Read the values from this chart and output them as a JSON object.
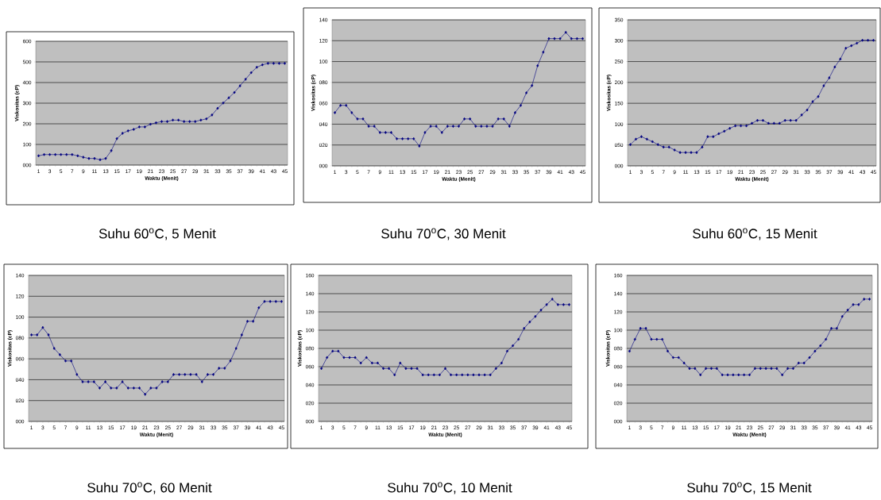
{
  "chart_data": [
    {
      "type": "line",
      "title": "Suhu 60$^{o}$C, 5 Menit",
      "xlabel": "Waktu (Menit)",
      "ylabel": "Viskositas (cP)",
      "marker": "diamond",
      "grid": "y",
      "categories": [
        "1",
        null,
        "3",
        null,
        "5",
        null,
        "7",
        null,
        "9",
        null,
        "11",
        null,
        "13",
        null,
        "15",
        null,
        "17",
        null,
        "19",
        null,
        "21",
        null,
        "23",
        null,
        "25",
        null,
        "27",
        null,
        "29",
        null,
        "31",
        null,
        "33",
        null,
        "35",
        null,
        "37",
        null,
        "39",
        null,
        "41",
        null,
        "43",
        null,
        "45"
      ],
      "ylim": [
        0,
        600
      ],
      "yticks": [
        {
          "value": 0,
          "label": "000"
        },
        100,
        200,
        300,
        400,
        500,
        600
      ],
      "series": [
        {
          "color": "#000080",
          "values": [
            45,
            51,
            51,
            51,
            51,
            51,
            51,
            45,
            38,
            32,
            32,
            26,
            32,
            70,
            128,
            154,
            166,
            173,
            185,
            185,
            198,
            205,
            211,
            211,
            218,
            218,
            211,
            211,
            211,
            218,
            224,
            243,
            275,
            301,
            326,
            352,
            384,
            416,
            448,
            474,
            486,
            493,
            493,
            493,
            493
          ]
        }
      ]
    },
    {
      "type": "line",
      "title": "Suhu 70$^{o}$C, 30 Menit",
      "xlabel": "Waktu (Menit)",
      "ylabel": "Viskositas (cP)",
      "marker": "diamond",
      "grid": "y",
      "categories": [
        "1",
        null,
        "3",
        null,
        "5",
        null,
        "7",
        null,
        "9",
        null,
        "11",
        null,
        "13",
        null,
        "15",
        null,
        "17",
        null,
        "19",
        null,
        "21",
        null,
        "23",
        null,
        "25",
        null,
        "27",
        null,
        "29",
        null,
        "31",
        null,
        "33",
        null,
        "35",
        null,
        "37",
        null,
        "39",
        null,
        "41",
        null,
        "43",
        null,
        "45"
      ],
      "ylim": [
        0,
        140
      ],
      "yticks": [
        {
          "value": 0,
          "label": "000"
        },
        {
          "value": 20,
          "label": "020"
        },
        {
          "value": 40,
          "label": "040"
        },
        {
          "value": 60,
          "label": "060"
        },
        {
          "value": 80,
          "label": "080"
        },
        100,
        120,
        140
      ],
      "series": [
        {
          "color": "#000080",
          "values": [
            51,
            58,
            58,
            51,
            45,
            45,
            38,
            38,
            32,
            32,
            32,
            26,
            26,
            26,
            26,
            19,
            32,
            38,
            38,
            32,
            38,
            38,
            38,
            45,
            45,
            38,
            38,
            38,
            38,
            45,
            45,
            38,
            51,
            58,
            70,
            77,
            96,
            109,
            122,
            122,
            122,
            128,
            122,
            122,
            122
          ]
        }
      ]
    },
    {
      "type": "line",
      "title": "Suhu 60$^{o}$C, 15 Menit",
      "xlabel": "Waktu (Menit)",
      "ylabel": "Viskositas (cP)",
      "marker": "diamond",
      "grid": "y",
      "categories": [
        "1",
        null,
        "3",
        null,
        "5",
        null,
        "7",
        null,
        "9",
        null,
        "11",
        null,
        "13",
        null,
        "15",
        null,
        "17",
        null,
        "19",
        null,
        "21",
        null,
        "23",
        null,
        "25",
        null,
        "27",
        null,
        "29",
        null,
        "31",
        null,
        "33",
        null,
        "35",
        null,
        "37",
        null,
        "39",
        null,
        "41",
        null,
        "43",
        null,
        "45"
      ],
      "ylim": [
        0,
        350
      ],
      "yticks": [
        {
          "value": 0,
          "label": "000"
        },
        {
          "value": 50,
          "label": "050"
        },
        100,
        150,
        200,
        250,
        300,
        350
      ],
      "series": [
        {
          "color": "#000080",
          "values": [
            51,
            64,
            70,
            64,
            58,
            51,
            45,
            45,
            38,
            32,
            32,
            32,
            32,
            45,
            70,
            70,
            77,
            83,
            90,
            96,
            96,
            96,
            102,
            109,
            109,
            102,
            102,
            102,
            109,
            109,
            109,
            122,
            134,
            154,
            166,
            192,
            211,
            237,
            256,
            282,
            288,
            294,
            301,
            301,
            301
          ]
        }
      ]
    },
    {
      "type": "line",
      "title": "Suhu 70$^{o}$C, 60 Menit",
      "xlabel": "Waktu (Menit)",
      "ylabel": "Viskositas (cP)",
      "marker": "diamond",
      "grid": "y",
      "categories": [
        "1",
        null,
        "3",
        null,
        "5",
        null,
        "7",
        null,
        "9",
        null,
        "11",
        null,
        "13",
        null,
        "15",
        null,
        "17",
        null,
        "19",
        null,
        "21",
        null,
        "23",
        null,
        "25",
        null,
        "27",
        null,
        "29",
        null,
        "31",
        null,
        "33",
        null,
        "35",
        null,
        "37",
        null,
        "39",
        null,
        "41",
        null,
        "43",
        null,
        "45"
      ],
      "ylim": [
        0,
        140
      ],
      "yticks": [
        {
          "value": 0,
          "label": "000"
        },
        {
          "value": 20,
          "label": "020"
        },
        {
          "value": 40,
          "label": "040"
        },
        {
          "value": 60,
          "label": "060"
        },
        {
          "value": 80,
          "label": "080"
        },
        100,
        120,
        140
      ],
      "series": [
        {
          "color": "#000080",
          "values": [
            83,
            83,
            90,
            83,
            70,
            64,
            58,
            58,
            45,
            38,
            38,
            38,
            32,
            38,
            32,
            32,
            38,
            32,
            32,
            32,
            26,
            32,
            32,
            38,
            38,
            45,
            45,
            45,
            45,
            45,
            38,
            45,
            45,
            51,
            51,
            58,
            70,
            83,
            96,
            96,
            109,
            115,
            115,
            115,
            115
          ]
        }
      ]
    },
    {
      "type": "line",
      "title": "Suhu 70$^{o}$C, 10 Menit",
      "xlabel": "Waktu (Menit)",
      "ylabel": "Viskositas (cP)",
      "marker": "diamond",
      "grid": "y",
      "categories": [
        "1",
        null,
        "3",
        null,
        "5",
        null,
        "7",
        null,
        "9",
        null,
        "11",
        null,
        "13",
        null,
        "15",
        null,
        "17",
        null,
        "19",
        null,
        "21",
        null,
        "23",
        null,
        "25",
        null,
        "27",
        null,
        "29",
        null,
        "31",
        null,
        "33",
        null,
        "35",
        null,
        "37",
        null,
        "39",
        null,
        "41",
        null,
        "43",
        null,
        "45"
      ],
      "ylim": [
        0,
        160
      ],
      "yticks": [
        {
          "value": 0,
          "label": "000"
        },
        {
          "value": 20,
          "label": "020"
        },
        {
          "value": 40,
          "label": "040"
        },
        {
          "value": 60,
          "label": "060"
        },
        {
          "value": 80,
          "label": "080"
        },
        100,
        120,
        140,
        160
      ],
      "series": [
        {
          "color": "#000080",
          "values": [
            58,
            70,
            77,
            77,
            70,
            70,
            70,
            64,
            70,
            64,
            64,
            58,
            58,
            51,
            64,
            58,
            58,
            58,
            51,
            51,
            51,
            51,
            58,
            51,
            51,
            51,
            51,
            51,
            51,
            51,
            51,
            58,
            64,
            77,
            83,
            90,
            102,
            109,
            115,
            122,
            128,
            134,
            128,
            128,
            128
          ]
        }
      ]
    },
    {
      "type": "line",
      "title": "Suhu 70$^{o}$C, 15 Menit",
      "xlabel": "Waktu (Menit)",
      "ylabel": "Viskositas (cP)",
      "marker": "diamond",
      "grid": "y",
      "categories": [
        "1",
        null,
        "3",
        null,
        "5",
        null,
        "7",
        null,
        "9",
        null,
        "11",
        null,
        "13",
        null,
        "15",
        null,
        "17",
        null,
        "19",
        null,
        "21",
        null,
        "23",
        null,
        "25",
        null,
        "27",
        null,
        "29",
        null,
        "31",
        null,
        "33",
        null,
        "35",
        null,
        "37",
        null,
        "39",
        null,
        "41",
        null,
        "43",
        null,
        "45"
      ],
      "ylim": [
        0,
        160
      ],
      "yticks": [
        {
          "value": 0,
          "label": "000"
        },
        {
          "value": 20,
          "label": "020"
        },
        {
          "value": 40,
          "label": "040"
        },
        {
          "value": 60,
          "label": "060"
        },
        {
          "value": 80,
          "label": "080"
        },
        100,
        120,
        140,
        160
      ],
      "series": [
        {
          "color": "#000080",
          "values": [
            77,
            90,
            102,
            102,
            90,
            90,
            90,
            77,
            70,
            70,
            64,
            58,
            58,
            51,
            58,
            58,
            58,
            51,
            51,
            51,
            51,
            51,
            51,
            58,
            58,
            58,
            58,
            58,
            51,
            58,
            58,
            64,
            64,
            70,
            77,
            83,
            90,
            102,
            102,
            115,
            122,
            128,
            128,
            134,
            134
          ]
        }
      ]
    }
  ]
}
